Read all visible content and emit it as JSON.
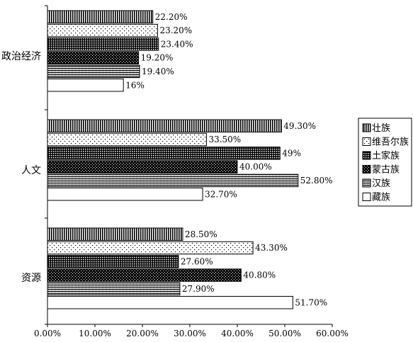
{
  "chart_data": {
    "type": "bar",
    "orientation": "horizontal",
    "categories": [
      "政治经济",
      "人文",
      "资源"
    ],
    "series": [
      {
        "name": "壮族",
        "pattern": "vertical-lines",
        "values": [
          22.2,
          49.3,
          28.5
        ],
        "labels": [
          "22.20%",
          "49.30%",
          "28.50%"
        ]
      },
      {
        "name": "维吾尔族",
        "pattern": "sparse-dots",
        "values": [
          23.2,
          33.5,
          43.3
        ],
        "labels": [
          "23.20%",
          "33.50%",
          "43.30%"
        ]
      },
      {
        "name": "土家族",
        "pattern": "dense-grid",
        "values": [
          23.4,
          49.0,
          27.6
        ],
        "labels": [
          "23.40%",
          "49%",
          "27.60%"
        ]
      },
      {
        "name": "蒙古族",
        "pattern": "dark-checker",
        "values": [
          19.2,
          40.0,
          40.8
        ],
        "labels": [
          "19.20%",
          "40.00%",
          "40.80%"
        ]
      },
      {
        "name": "汉族",
        "pattern": "horizontal-lines",
        "values": [
          19.4,
          52.8,
          27.9
        ],
        "labels": [
          "19.40%",
          "52.80%",
          "27.90%"
        ]
      },
      {
        "name": "藏族",
        "pattern": "solid-white",
        "values": [
          16.0,
          32.7,
          51.7
        ],
        "labels": [
          "16%",
          "32.70%",
          "51.70%"
        ]
      }
    ],
    "xlim": [
      0,
      60
    ],
    "xticks": [
      "0.00%",
      "10.00%",
      "20.00%",
      "30.00%",
      "40.00%",
      "50.00%",
      "60.00%"
    ],
    "grid": false,
    "legend": {
      "position": "right"
    }
  }
}
